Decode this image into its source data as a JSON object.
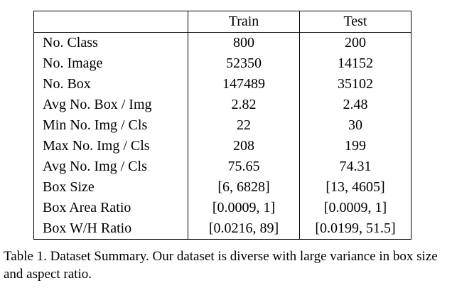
{
  "table": {
    "col_headers": [
      "",
      "Train",
      "Test"
    ],
    "rows": [
      {
        "label": "No. Class",
        "train": "800",
        "test": "200"
      },
      {
        "label": "No. Image",
        "train": "52350",
        "test": "14152"
      },
      {
        "label": "No. Box",
        "train": "147489",
        "test": "35102"
      },
      {
        "label": "Avg No. Box / Img",
        "train": "2.82",
        "test": "2.48"
      },
      {
        "label": "Min No. Img / Cls",
        "train": "22",
        "test": "30"
      },
      {
        "label": "Max No. Img / Cls",
        "train": "208",
        "test": "199"
      },
      {
        "label": "Avg No. Img / Cls",
        "train": "75.65",
        "test": "74.31"
      },
      {
        "label": "Box Size",
        "train": "[6, 6828]",
        "test": "[13, 4605]"
      },
      {
        "label": "Box Area Ratio",
        "train": "[0.0009, 1]",
        "test": "[0.0009, 1]"
      },
      {
        "label": "Box W/H Ratio",
        "train": "[0.0216, 89]",
        "test": "[0.0199, 51.5]"
      }
    ]
  },
  "caption": "Table 1. Dataset Summary. Our dataset is diverse with large variance in box size and aspect ratio."
}
